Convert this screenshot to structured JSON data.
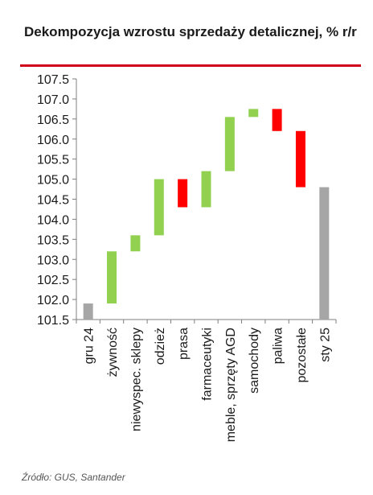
{
  "title": "Dekompozycja wzrostu sprzedaży detalicznej, % r/r",
  "source": "Źródło: GUS, Santander",
  "colors": {
    "increase": "#92d050",
    "decrease": "#ff0000",
    "total": "#a6a6a6",
    "accent": "#d0021b"
  },
  "chart_data": {
    "type": "bar",
    "subtype": "waterfall",
    "title": "Dekompozycja wzrostu sprzedaży detalicznej, % r/r",
    "xlabel": "",
    "ylabel": "",
    "ylim": [
      101.5,
      107.5
    ],
    "yticks": [
      "107.5",
      "107.0",
      "106.5",
      "106.0",
      "105.5",
      "105.0",
      "104.5",
      "104.0",
      "103.5",
      "103.0",
      "102.5",
      "102.0",
      "101.5"
    ],
    "grid": false,
    "categories": [
      "gru 24",
      "żywność",
      "niewyspec. sklepy",
      "odzież",
      "prasa",
      "farmaceutyki",
      "meble, sprzęty AGD",
      "samochody",
      "paliwa",
      "pozostałe",
      "sty 25"
    ],
    "bars": [
      {
        "category": "gru 24",
        "kind": "total",
        "low": 101.5,
        "high": 101.9
      },
      {
        "category": "żywność",
        "kind": "increase",
        "low": 101.9,
        "high": 103.2
      },
      {
        "category": "niewyspec. sklepy",
        "kind": "increase",
        "low": 103.2,
        "high": 103.6
      },
      {
        "category": "odzież",
        "kind": "increase",
        "low": 103.6,
        "high": 105.0
      },
      {
        "category": "prasa",
        "kind": "decrease",
        "low": 104.3,
        "high": 105.0
      },
      {
        "category": "farmaceutyki",
        "kind": "increase",
        "low": 104.3,
        "high": 105.2
      },
      {
        "category": "meble, sprzęty AGD",
        "kind": "increase",
        "low": 105.2,
        "high": 106.55
      },
      {
        "category": "samochody",
        "kind": "increase",
        "low": 106.55,
        "high": 106.75
      },
      {
        "category": "paliwa",
        "kind": "decrease",
        "low": 106.2,
        "high": 106.75
      },
      {
        "category": "pozostałe",
        "kind": "decrease",
        "low": 104.8,
        "high": 106.2
      },
      {
        "category": "sty 25",
        "kind": "total",
        "low": 101.5,
        "high": 104.8
      }
    ]
  }
}
